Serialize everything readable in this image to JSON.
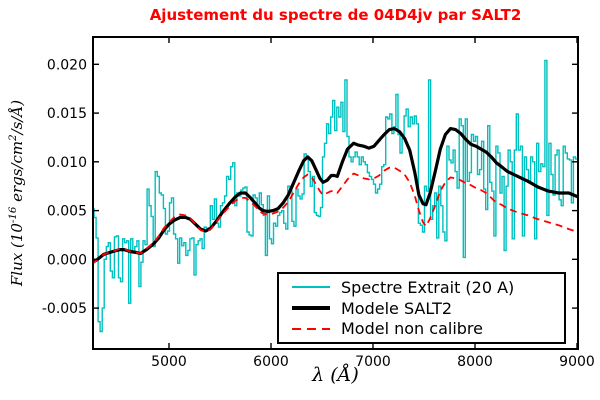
{
  "title": {
    "text": "Ajustement du spectre de 04D4jv par SALT2",
    "color": "#ff0000"
  },
  "axes": {
    "xlabel": "λ (Å)",
    "ylabel": {
      "pre": "Flux (10",
      "exp": "-16",
      "mid": " ergs/cm",
      "exp2": "2",
      "suf": "/s/Å)"
    },
    "xticks": [
      "5000",
      "6000",
      "7000",
      "8000",
      "9000"
    ],
    "yticks": [
      "0.020",
      "0.015",
      "0.010",
      "0.005",
      "0.000",
      "-0.005"
    ]
  },
  "legend": {
    "items": [
      {
        "label": "Spectre Extrait (20 A)",
        "color": "#00bfbf",
        "style": "solid-thin"
      },
      {
        "label": "Modele SALT2",
        "color": "#000000",
        "style": "solid-thick"
      },
      {
        "label": "Model non calibre",
        "color": "#ff0000",
        "style": "dashed"
      }
    ]
  },
  "chart_data": {
    "type": "line",
    "title": "Ajustement du spectre de 04D4jv par SALT2",
    "xlabel": "λ (Å)",
    "ylabel": "Flux (10^-16 ergs/cm^2/s/Å)",
    "xlim": [
      4255,
      9010
    ],
    "ylim": [
      -0.0092,
      0.0228
    ],
    "grid": false,
    "legend_position": "lower right",
    "series": [
      {
        "name": "Spectre Extrait (20 A)",
        "color": "#00bfbf",
        "style": "step",
        "bin_width": 20,
        "x_start": 4255,
        "x_step": 20,
        "values": [
          0.0052,
          0.0043,
          0.0022,
          -0.0064,
          -0.0074,
          -0.005,
          0.0,
          0.0013,
          0.0017,
          -0.0012,
          -0.0019,
          0.0023,
          0.0024,
          -0.0019,
          -0.0023,
          0.0021,
          0.0017,
          0.0019,
          -0.0045,
          0.0021,
          0.0008,
          0.0013,
          0.0019,
          -0.0028,
          -0.0003,
          0.0019,
          0.0015,
          0.0072,
          0.0055,
          0.0044,
          0.0013,
          0.009,
          0.0085,
          0.0068,
          0.0066,
          0.0052,
          0.0026,
          0.0029,
          0.0058,
          0.0063,
          0.0026,
          0.0021,
          -0.0004,
          0.0022,
          0.0014,
          0.0017,
          0.0004,
          0.0009,
          0.0021,
          0.0022,
          -0.0016,
          0.0015,
          0.0019,
          0.0021,
          0.0011,
          0.0033,
          0.0032,
          0.003,
          0.0055,
          0.0041,
          0.0062,
          0.0037,
          0.0033,
          0.0055,
          0.0058,
          0.0065,
          0.0085,
          0.0082,
          0.0095,
          0.0099,
          0.0055,
          0.0068,
          0.0065,
          0.0071,
          0.0073,
          0.0074,
          0.0028,
          0.0025,
          0.0024,
          0.0066,
          0.0063,
          0.0053,
          0.0068,
          0.0056,
          0.0045,
          0.0004,
          0.0065,
          0.0021,
          0.0016,
          0.0037,
          0.0034,
          0.0045,
          0.0048,
          0.005,
          0.0037,
          0.0031,
          0.0075,
          0.007,
          0.0039,
          0.0034,
          0.0072,
          0.0065,
          0.0062,
          0.0067,
          0.0108,
          0.0105,
          0.009,
          0.0075,
          0.0085,
          0.0048,
          0.0045,
          0.0044,
          0.0053,
          0.0105,
          0.0119,
          0.0139,
          0.0129,
          0.0146,
          0.0163,
          0.0132,
          0.0156,
          0.0146,
          0.0161,
          0.0131,
          0.0184,
          0.0126,
          0.0105,
          0.01,
          0.0105,
          0.011,
          0.0105,
          0.0097,
          0.0105,
          0.01,
          0.0097,
          0.0089,
          0.0085,
          0.0082,
          0.0077,
          0.0068,
          0.0072,
          0.0077,
          0.0095,
          0.0097,
          0.0146,
          0.0144,
          0.0149,
          0.0129,
          0.0136,
          0.0169,
          0.0128,
          0.0109,
          0.0124,
          0.0147,
          0.0154,
          0.0136,
          0.0146,
          0.0139,
          0.0147,
          0.0139,
          0.0037,
          0.0035,
          0.0028,
          0.0075,
          0.007,
          0.0184,
          0.0041,
          0.0055,
          0.0068,
          0.0022,
          0.0075,
          0.0055,
          0.0028,
          0.0019,
          0.0116,
          0.0102,
          0.0099,
          0.0112,
          0.009,
          0.0073,
          0.0144,
          0.0137,
          0.0002,
          0.0144,
          0.008,
          0.0089,
          0.0128,
          0.0121,
          0.0126,
          0.0087,
          0.0092,
          0.0121,
          0.0072,
          0.0051,
          0.0137,
          0.0079,
          0.007,
          0.0024,
          0.0116,
          0.0109,
          0.0068,
          0.0085,
          0.0009,
          0.0075,
          0.0112,
          0.01,
          0.0021,
          0.0112,
          0.0149,
          0.0112,
          0.0116,
          0.0024,
          0.0105,
          0.0092,
          0.0079,
          0.0105,
          0.01,
          0.0021,
          0.0119,
          0.009,
          0.0098,
          0.0095,
          0.0204,
          0.0045,
          0.0119,
          0.0087,
          0.0066,
          0.0107,
          0.0112,
          0.0061,
          0.0055,
          0.0116,
          0.0109,
          0.0103,
          0.0102,
          0.0058,
          0.0105,
          0.0103
        ]
      },
      {
        "name": "Modele SALT2",
        "color": "#000000",
        "style": "line",
        "x": [
          4255,
          4300,
          4360,
          4450,
          4520,
          4560,
          4620,
          4680,
          4720,
          4780,
          4850,
          4900,
          4950,
          5000,
          5050,
          5110,
          5160,
          5210,
          5260,
          5310,
          5360,
          5410,
          5470,
          5530,
          5590,
          5650,
          5700,
          5750,
          5800,
          5850,
          5880,
          5920,
          5970,
          6020,
          6070,
          6120,
          6170,
          6220,
          6270,
          6320,
          6360,
          6400,
          6440,
          6480,
          6510,
          6550,
          6590,
          6620,
          6650,
          6700,
          6750,
          6810,
          6860,
          6910,
          6960,
          7010,
          7060,
          7110,
          7160,
          7210,
          7260,
          7310,
          7360,
          7410,
          7450,
          7490,
          7520,
          7560,
          7610,
          7660,
          7710,
          7760,
          7810,
          7860,
          7910,
          7960,
          8010,
          8060,
          8110,
          8160,
          8210,
          8260,
          8320,
          8420,
          8520,
          8620,
          8720,
          8820,
          8920,
          9010
        ],
        "y": [
          -0.0003,
          0.0,
          0.0005,
          0.0008,
          0.001,
          0.001,
          0.0008,
          0.0007,
          0.0006,
          0.001,
          0.0016,
          0.0022,
          0.003,
          0.0036,
          0.004,
          0.0043,
          0.0043,
          0.0041,
          0.0036,
          0.0031,
          0.0029,
          0.0032,
          0.004,
          0.0049,
          0.0057,
          0.0064,
          0.0068,
          0.0068,
          0.0063,
          0.0057,
          0.0053,
          0.005,
          0.0049,
          0.005,
          0.0052,
          0.0058,
          0.0066,
          0.0078,
          0.009,
          0.0101,
          0.0105,
          0.0101,
          0.0092,
          0.0083,
          0.0079,
          0.0081,
          0.0086,
          0.0086,
          0.0085,
          0.01,
          0.0113,
          0.0119,
          0.0117,
          0.0116,
          0.0114,
          0.0116,
          0.0122,
          0.0128,
          0.0133,
          0.0134,
          0.0131,
          0.0124,
          0.0112,
          0.0089,
          0.0066,
          0.0057,
          0.0056,
          0.0068,
          0.009,
          0.0113,
          0.0128,
          0.0134,
          0.0133,
          0.0129,
          0.0123,
          0.0118,
          0.0116,
          0.0113,
          0.011,
          0.0105,
          0.0099,
          0.0095,
          0.009,
          0.0085,
          0.008,
          0.0074,
          0.007,
          0.0068,
          0.0068,
          0.0064
        ]
      },
      {
        "name": "Model non calibre",
        "color": "#ff0000",
        "style": "dashed",
        "x": [
          4255,
          4300,
          4360,
          4450,
          4520,
          4560,
          4620,
          4680,
          4720,
          4780,
          4850,
          4900,
          4950,
          5000,
          5050,
          5110,
          5160,
          5210,
          5260,
          5310,
          5360,
          5410,
          5470,
          5530,
          5590,
          5650,
          5700,
          5750,
          5800,
          5850,
          5880,
          5920,
          5970,
          6020,
          6070,
          6120,
          6170,
          6220,
          6270,
          6320,
          6360,
          6400,
          6440,
          6480,
          6510,
          6550,
          6590,
          6620,
          6650,
          6700,
          6750,
          6810,
          6860,
          6910,
          6960,
          7010,
          7060,
          7110,
          7160,
          7210,
          7260,
          7310,
          7360,
          7410,
          7450,
          7490,
          7520,
          7560,
          7610,
          7660,
          7710,
          7760,
          7810,
          7860,
          7910,
          7960,
          8010,
          8060,
          8110,
          8160,
          8210,
          8260,
          8320,
          8420,
          8520,
          8620,
          8720,
          8820,
          8920,
          9010
        ],
        "y": [
          -0.0004,
          0.0,
          0.0005,
          0.0008,
          0.0011,
          0.0011,
          0.0008,
          0.0007,
          0.0006,
          0.0011,
          0.0017,
          0.0024,
          0.0032,
          0.0038,
          0.0043,
          0.0046,
          0.0045,
          0.0042,
          0.0036,
          0.003,
          0.0028,
          0.0031,
          0.0039,
          0.0047,
          0.0054,
          0.006,
          0.0063,
          0.0063,
          0.0059,
          0.0054,
          0.005,
          0.0047,
          0.0046,
          0.0047,
          0.0049,
          0.0053,
          0.0059,
          0.0068,
          0.0077,
          0.0084,
          0.0087,
          0.0084,
          0.0077,
          0.007,
          0.0066,
          0.0068,
          0.007,
          0.007,
          0.0068,
          0.0075,
          0.0082,
          0.0088,
          0.0086,
          0.0083,
          0.0082,
          0.0083,
          0.0086,
          0.0091,
          0.0094,
          0.0094,
          0.0091,
          0.0087,
          0.0079,
          0.0065,
          0.005,
          0.0038,
          0.0034,
          0.0042,
          0.0055,
          0.007,
          0.0079,
          0.0084,
          0.0083,
          0.0081,
          0.0078,
          0.0076,
          0.0073,
          0.0071,
          0.0068,
          0.0063,
          0.0058,
          0.0056,
          0.0052,
          0.0048,
          0.0045,
          0.0041,
          0.0038,
          0.0035,
          0.0031,
          0.0028
        ]
      }
    ]
  }
}
